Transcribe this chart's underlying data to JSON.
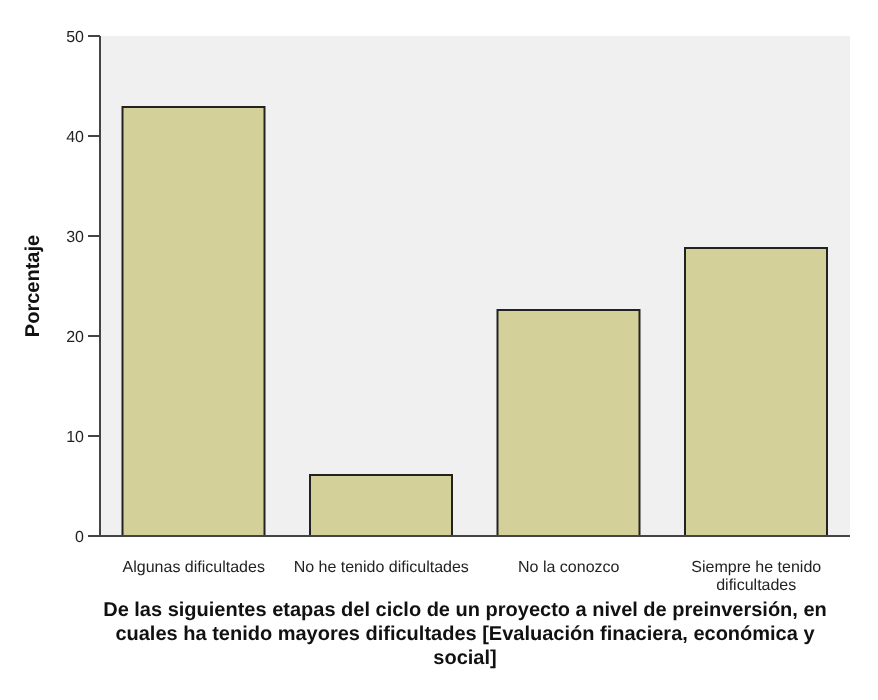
{
  "chart_data": {
    "type": "bar",
    "categories": [
      "Algunas dificultades",
      "No he tenido dificultades",
      "No la conozco",
      "Siempre he tenido dificultades"
    ],
    "values": [
      42.9,
      6.1,
      22.6,
      28.8
    ],
    "color": "#d4d09a",
    "ylabel": "Porcentaje",
    "xlabel": "De las siguientes etapas del ciclo de un proyecto a nivel de preinversión, en cuales ha tenido mayores dificultades [Evaluación finaciera, económica y social]",
    "ylim": [
      0,
      50
    ],
    "yticks": [
      0,
      10,
      20,
      30,
      40,
      50
    ]
  }
}
